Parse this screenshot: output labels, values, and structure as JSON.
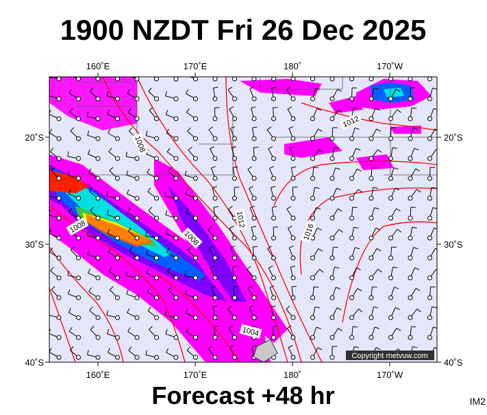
{
  "header": {
    "title": "1900 NZDT Fri 26 Dec 2025"
  },
  "map": {
    "top_labels": [
      "160˚E",
      "170˚E",
      "180˚",
      "170˚W"
    ],
    "bottom_labels": [
      "160˚E",
      "170˚E",
      "180˚",
      "170˚W"
    ],
    "left_labels": [
      "20˚S",
      "30˚S",
      "40˚S"
    ],
    "right_labels": [
      "20˚S",
      "30˚S",
      "40˚S"
    ],
    "isobar_labels": [
      "1008",
      "1012",
      "1008",
      "1008",
      "1012",
      "1016",
      "1004"
    ],
    "copyright": "Copyright metvuw.com"
  },
  "footer": {
    "forecast": "Forecast +48 hr",
    "code": "IM2"
  }
}
